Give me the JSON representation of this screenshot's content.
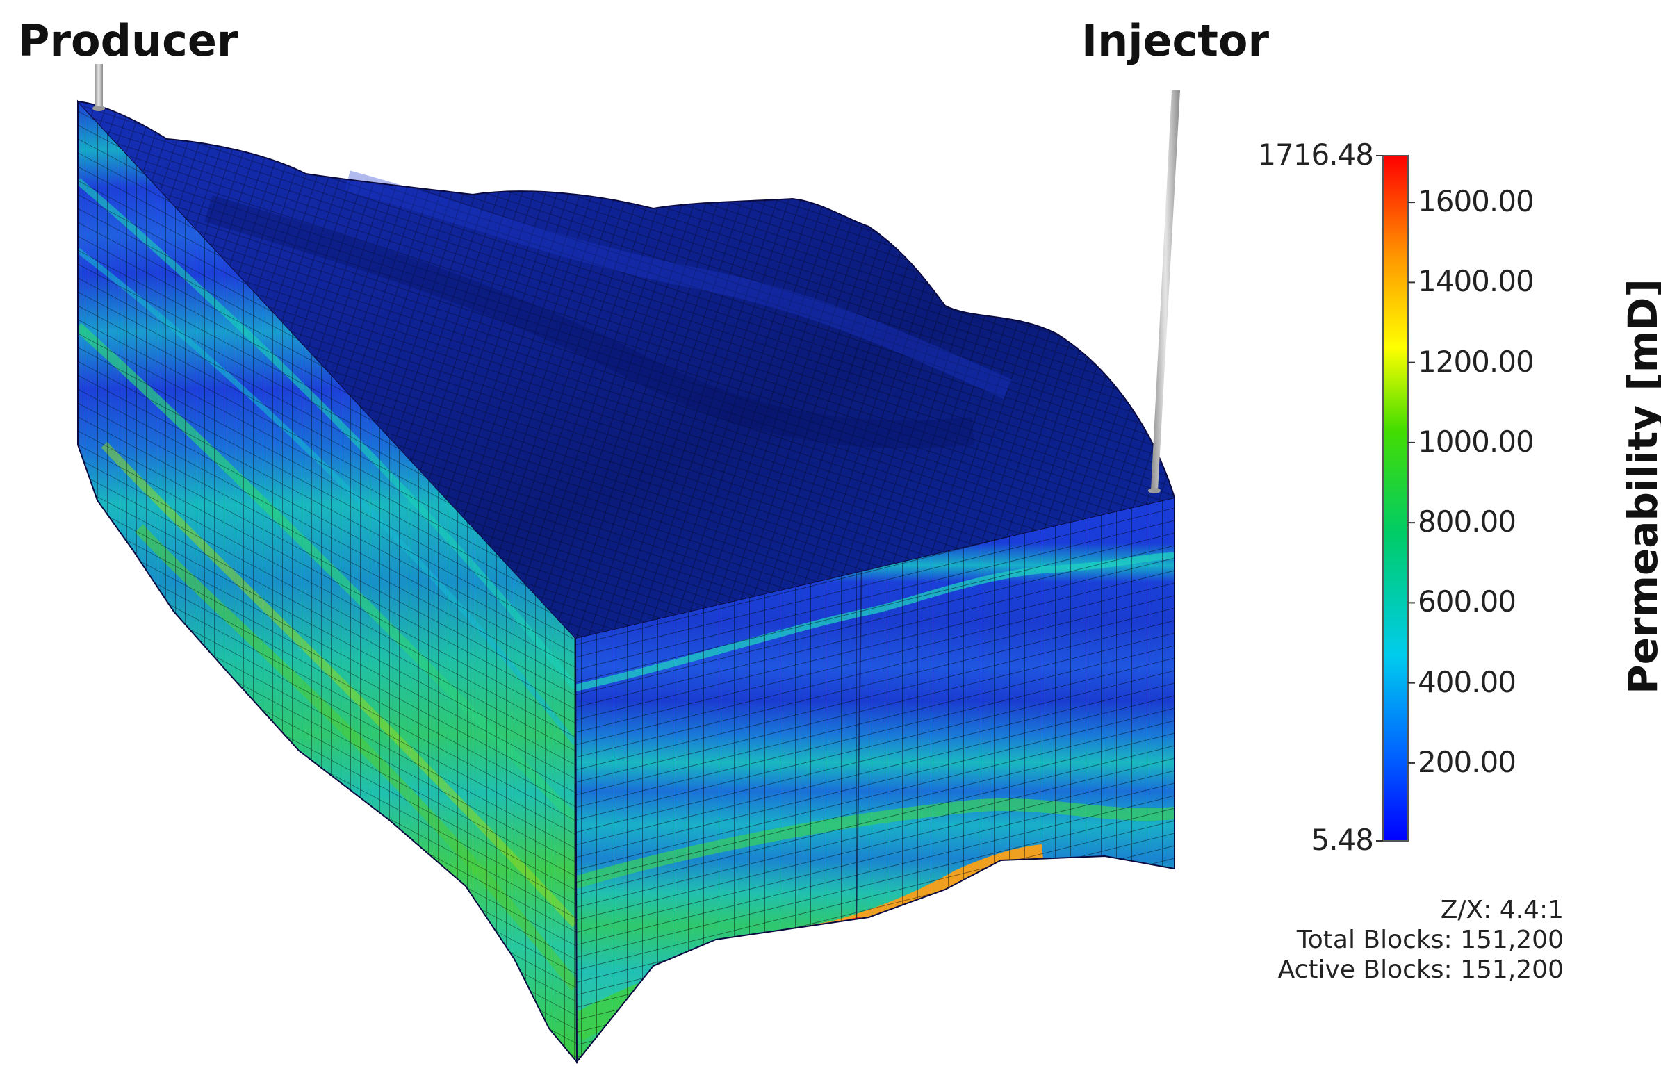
{
  "wells": {
    "producer": "Producer",
    "injector": "Injector"
  },
  "colorbar": {
    "title": "Permeability [mD]",
    "min_label": "5.48",
    "max_label": "1716.48",
    "min": 5.48,
    "max": 1716.48,
    "ticks": [
      {
        "value": 1600,
        "label": "1600.00"
      },
      {
        "value": 1400,
        "label": "1400.00"
      },
      {
        "value": 1200,
        "label": "1200.00"
      },
      {
        "value": 1000,
        "label": "1000.00"
      },
      {
        "value": 800,
        "label": "800.00"
      },
      {
        "value": 600,
        "label": "600.00"
      },
      {
        "value": 400,
        "label": "400.00"
      },
      {
        "value": 200,
        "label": "200.00"
      }
    ],
    "colormap": [
      "#0000ff",
      "#0080ff",
      "#00e0e0",
      "#00cc44",
      "#80e000",
      "#ffff00",
      "#ff9900",
      "#ff0000"
    ]
  },
  "info": {
    "zx": "Z/X: 4.4:1",
    "total_blocks": "Total Blocks: 151,200",
    "active_blocks": "Active Blocks: 151,200"
  },
  "colors": {
    "top_surface": "#0d1f8f",
    "low_perm": "#1a3fd8",
    "mid_perm": "#19c8c8",
    "high_perm": "#2ecc40",
    "peak_perm": "#e0202a",
    "well_pipe": "#b0b0b0"
  }
}
